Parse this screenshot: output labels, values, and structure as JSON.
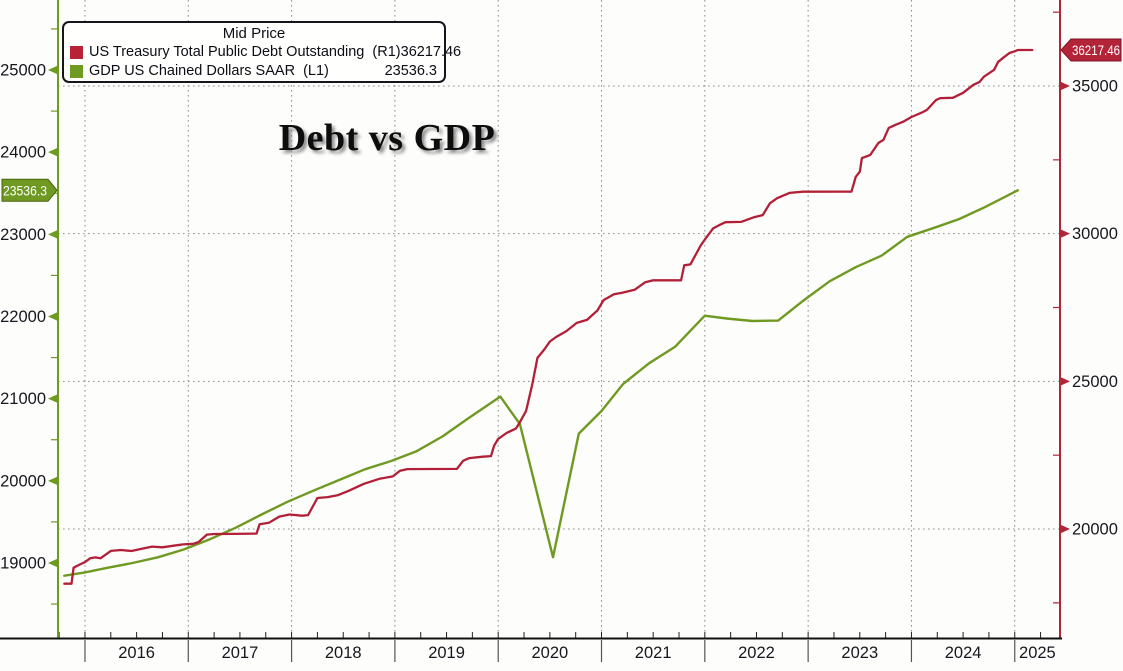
{
  "title": "Debt vs GDP",
  "legend": {
    "title": "Mid Price",
    "series": [
      {
        "label": "US Treasury Total Public Debt Outstanding  (R1)",
        "value": "36217.46",
        "color": "#b82236"
      },
      {
        "label": "GDP US Chained Dollars SAAR  (L1)",
        "value": "23536.3",
        "color": "#6f9a22"
      }
    ]
  },
  "tags": {
    "left": {
      "text": "23536.3",
      "color": "#6f9a22",
      "value": 23536.3
    },
    "right": {
      "text": "36217.46",
      "color": "#b32438",
      "value": 36217.46
    }
  },
  "chart_data": {
    "type": "line",
    "title": "Debt vs GDP",
    "grid": {
      "on": true,
      "color": "#8d8d8d"
    },
    "x_axis": {
      "min": 2015.739,
      "max": 2025.438,
      "year_ticks": [
        2016,
        2017,
        2018,
        2019,
        2020,
        2021,
        2022,
        2023,
        2024,
        2025
      ],
      "year_labels": [
        "2016",
        "2017",
        "2018",
        "2019",
        "2020",
        "2021",
        "2022",
        "2023",
        "2024",
        "2025"
      ],
      "quarter_tick_step": 0.25
    },
    "left_axis": {
      "min": 18160,
      "max": 25852,
      "color": "#6f9a22",
      "major_ticks": [
        19000,
        20000,
        21000,
        22000,
        23000,
        24000,
        25000
      ],
      "minor_step": 500,
      "current_value": 23536.3
    },
    "right_axis": {
      "min": 16513,
      "max": 37912,
      "color": "#b32438",
      "major_ticks": [
        20000,
        25000,
        30000,
        35000
      ],
      "minor_step": 2500,
      "current_value": 36217.46
    },
    "series": [
      {
        "name": "GDP US Chained Dollars SAAR",
        "short": "gdp",
        "axis": "left",
        "color": "#6f9a22",
        "width": 2.4,
        "points": [
          [
            2015.8,
            18845
          ],
          [
            2016.0,
            18885
          ],
          [
            2016.21,
            18940
          ],
          [
            2016.46,
            19000
          ],
          [
            2016.71,
            19070
          ],
          [
            2016.96,
            19165
          ],
          [
            2017.21,
            19290
          ],
          [
            2017.46,
            19430
          ],
          [
            2017.71,
            19590
          ],
          [
            2017.96,
            19745
          ],
          [
            2018.21,
            19880
          ],
          [
            2018.46,
            20010
          ],
          [
            2018.71,
            20140
          ],
          [
            2018.96,
            20240
          ],
          [
            2019.21,
            20360
          ],
          [
            2019.46,
            20540
          ],
          [
            2019.71,
            20760
          ],
          [
            2020.02,
            21025
          ],
          [
            2020.21,
            20690
          ],
          [
            2020.53,
            19070
          ],
          [
            2020.78,
            20575
          ],
          [
            2021.0,
            20850
          ],
          [
            2021.21,
            21180
          ],
          [
            2021.46,
            21430
          ],
          [
            2021.71,
            21630
          ],
          [
            2022.0,
            22010
          ],
          [
            2022.21,
            21975
          ],
          [
            2022.46,
            21945
          ],
          [
            2022.71,
            21950
          ],
          [
            2022.96,
            22200
          ],
          [
            2023.21,
            22430
          ],
          [
            2023.46,
            22600
          ],
          [
            2023.71,
            22740
          ],
          [
            2023.96,
            22970
          ],
          [
            2024.21,
            23075
          ],
          [
            2024.46,
            23185
          ],
          [
            2024.71,
            23330
          ],
          [
            2025.03,
            23536.3
          ]
        ]
      },
      {
        "name": "US Treasury Total Public Debt Outstanding",
        "short": "debt",
        "axis": "right",
        "color": "#b22038",
        "width": 2.3,
        "points": [
          [
            2015.8,
            18150
          ],
          [
            2015.87,
            18150
          ],
          [
            2015.89,
            18690
          ],
          [
            2015.95,
            18800
          ],
          [
            2016.0,
            18880
          ],
          [
            2016.05,
            19010
          ],
          [
            2016.1,
            19040
          ],
          [
            2016.15,
            19010
          ],
          [
            2016.25,
            19260
          ],
          [
            2016.35,
            19290
          ],
          [
            2016.45,
            19255
          ],
          [
            2016.55,
            19330
          ],
          [
            2016.65,
            19405
          ],
          [
            2016.75,
            19380
          ],
          [
            2016.85,
            19430
          ],
          [
            2016.95,
            19480
          ],
          [
            2017.05,
            19500
          ],
          [
            2017.1,
            19560
          ],
          [
            2017.18,
            19810
          ],
          [
            2017.25,
            19830
          ],
          [
            2017.45,
            19835
          ],
          [
            2017.66,
            19845
          ],
          [
            2017.69,
            20160
          ],
          [
            2017.78,
            20210
          ],
          [
            2017.88,
            20420
          ],
          [
            2017.98,
            20490
          ],
          [
            2018.1,
            20450
          ],
          [
            2018.16,
            20470
          ],
          [
            2018.25,
            21050
          ],
          [
            2018.35,
            21080
          ],
          [
            2018.45,
            21150
          ],
          [
            2018.55,
            21290
          ],
          [
            2018.7,
            21530
          ],
          [
            2018.85,
            21700
          ],
          [
            2018.98,
            21780
          ],
          [
            2019.05,
            21975
          ],
          [
            2019.12,
            22030
          ],
          [
            2019.6,
            22035
          ],
          [
            2019.66,
            22310
          ],
          [
            2019.72,
            22400
          ],
          [
            2019.85,
            22450
          ],
          [
            2019.93,
            22470
          ],
          [
            2019.96,
            22820
          ],
          [
            2020.0,
            23050
          ],
          [
            2020.08,
            23250
          ],
          [
            2020.17,
            23400
          ],
          [
            2020.2,
            23560
          ],
          [
            2020.27,
            24000
          ],
          [
            2020.33,
            24900
          ],
          [
            2020.38,
            25800
          ],
          [
            2020.44,
            26050
          ],
          [
            2020.5,
            26350
          ],
          [
            2020.56,
            26500
          ],
          [
            2020.66,
            26700
          ],
          [
            2020.76,
            26980
          ],
          [
            2020.86,
            27080
          ],
          [
            2020.96,
            27400
          ],
          [
            2021.02,
            27750
          ],
          [
            2021.12,
            27950
          ],
          [
            2021.2,
            28000
          ],
          [
            2021.32,
            28100
          ],
          [
            2021.42,
            28350
          ],
          [
            2021.5,
            28420
          ],
          [
            2021.77,
            28420
          ],
          [
            2021.8,
            28930
          ],
          [
            2021.86,
            28960
          ],
          [
            2021.96,
            29600
          ],
          [
            2022.0,
            29800
          ],
          [
            2022.08,
            30180
          ],
          [
            2022.14,
            30290
          ],
          [
            2022.2,
            30390
          ],
          [
            2022.35,
            30400
          ],
          [
            2022.48,
            30560
          ],
          [
            2022.56,
            30630
          ],
          [
            2022.63,
            31030
          ],
          [
            2022.7,
            31200
          ],
          [
            2022.82,
            31380
          ],
          [
            2022.95,
            31420
          ],
          [
            2023.42,
            31425
          ],
          [
            2023.46,
            31920
          ],
          [
            2023.5,
            32100
          ],
          [
            2023.52,
            32560
          ],
          [
            2023.6,
            32660
          ],
          [
            2023.68,
            33070
          ],
          [
            2023.73,
            33180
          ],
          [
            2023.78,
            33580
          ],
          [
            2023.85,
            33690
          ],
          [
            2023.92,
            33790
          ],
          [
            2024.0,
            33950
          ],
          [
            2024.1,
            34100
          ],
          [
            2024.15,
            34190
          ],
          [
            2024.24,
            34530
          ],
          [
            2024.28,
            34590
          ],
          [
            2024.4,
            34600
          ],
          [
            2024.5,
            34770
          ],
          [
            2024.6,
            35040
          ],
          [
            2024.66,
            35140
          ],
          [
            2024.7,
            35310
          ],
          [
            2024.8,
            35550
          ],
          [
            2024.84,
            35820
          ],
          [
            2024.9,
            35990
          ],
          [
            2024.95,
            36120
          ],
          [
            2024.99,
            36160
          ],
          [
            2025.03,
            36217.46
          ],
          [
            2025.17,
            36217.46
          ]
        ]
      }
    ]
  }
}
